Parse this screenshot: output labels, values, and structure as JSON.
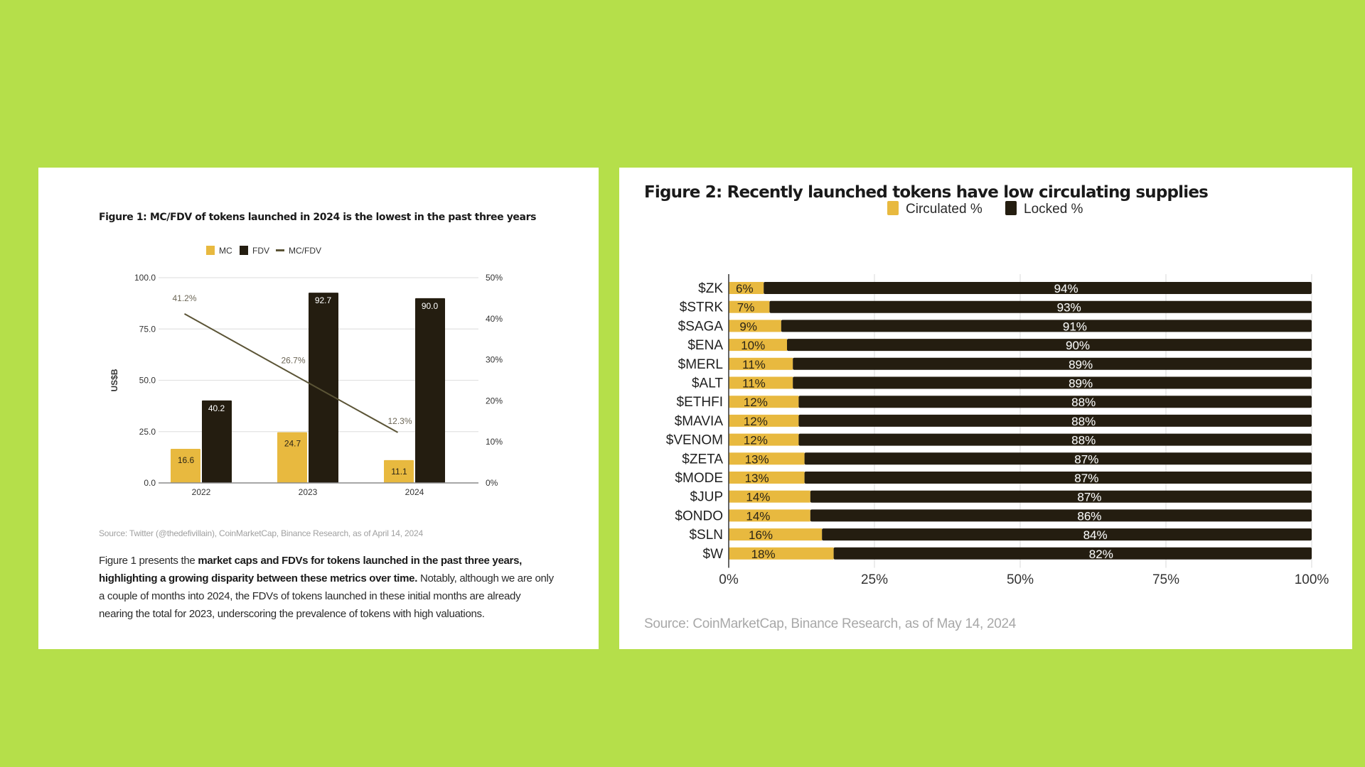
{
  "colors": {
    "background": "#b5df4a",
    "mc": "#e8b93f",
    "fdv": "#241d10",
    "ratio_line": "#5b5436",
    "circulated": "#e8b93f",
    "locked": "#241d10",
    "grid": "#e2e2e2"
  },
  "figure1": {
    "title": "Figure 1: MC/FDV of tokens launched in 2024 is the lowest in the past three years",
    "source": "Source: Twitter (@thedefivillain), CoinMarketCap, Binance Research, as of April 14, 2024",
    "paragraph": {
      "intro": "Figure 1 presents the ",
      "bold": "market caps and FDVs for tokens launched in the past three years, highlighting a growing disparity between these metrics over time.",
      "rest": " Notably, although we are only a couple of months into 2024, the FDVs of tokens launched in these initial months are already nearing the total for 2023, underscoring the prevalence of tokens with high valuations."
    }
  },
  "figure2": {
    "title": "Figure 2: Recently launched tokens have low circulating supplies",
    "source": "Source: CoinMarketCap, Binance Research, as of May 14, 2024"
  },
  "chart_data": [
    {
      "type": "bar",
      "title": "Figure 1: MC/FDV of tokens launched in 2024 is the lowest in the past three years",
      "categories": [
        "2022",
        "2023",
        "2024"
      ],
      "series": [
        {
          "name": "MC",
          "values": [
            16.6,
            24.7,
            11.1
          ],
          "labels": [
            "16.6",
            "24.7",
            "11.1"
          ]
        },
        {
          "name": "FDV",
          "values": [
            40.2,
            92.7,
            90.0
          ],
          "labels": [
            "40.2",
            "92.7",
            "90.0"
          ]
        },
        {
          "name": "MC/FDV",
          "type": "line",
          "axis": "right",
          "values": [
            41.2,
            26.7,
            12.3
          ],
          "labels": [
            "41.2%",
            "26.7%",
            "12.3%"
          ]
        }
      ],
      "xlabel": "",
      "ylabel": "US$B",
      "ylim": [
        0,
        100
      ],
      "yticks": [
        "0.0",
        "25.0",
        "50.0",
        "75.0",
        "100.0"
      ],
      "y2lim": [
        0,
        50
      ],
      "y2ticks": [
        "0%",
        "10%",
        "20%",
        "30%",
        "40%",
        "50%"
      ],
      "legend": [
        "MC",
        "FDV",
        "MC/FDV"
      ],
      "legend_position": "top-center",
      "grid": true
    },
    {
      "type": "bar",
      "orientation": "horizontal-stacked",
      "title": "Figure 2: Recently launched tokens have low circulating supplies",
      "categories": [
        "$ZK",
        "$STRK",
        "$SAGA",
        "$ENA",
        "$MERL",
        "$ALT",
        "$ETHFI",
        "$MAVIA",
        "$VENOM",
        "$ZETA",
        "$MODE",
        "$JUP",
        "$ONDO",
        "$SLN",
        "$W"
      ],
      "series": [
        {
          "name": "Circulated %",
          "values": [
            6,
            7,
            9,
            10,
            11,
            11,
            12,
            12,
            12,
            13,
            13,
            14,
            14,
            16,
            18
          ]
        },
        {
          "name": "Locked %",
          "values": [
            94,
            93,
            91,
            90,
            89,
            89,
            88,
            88,
            88,
            87,
            87,
            87,
            86,
            84,
            82
          ]
        }
      ],
      "xlim": [
        0,
        100
      ],
      "xticks": [
        "0%",
        "25%",
        "50%",
        "75%",
        "100%"
      ],
      "legend": [
        "Circulated %",
        "Locked %"
      ],
      "legend_position": "top-center",
      "grid": true
    }
  ]
}
